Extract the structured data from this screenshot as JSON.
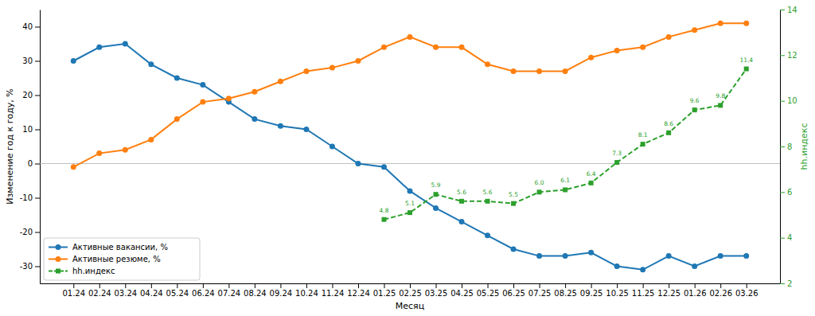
{
  "chart_data": {
    "type": "line",
    "x_label": "Месяц",
    "y_label": "Изменение год к году, %",
    "y2_label": "hh.индекс",
    "categories": [
      "01.24",
      "02.24",
      "03.24",
      "04.24",
      "05.24",
      "06.24",
      "07.24",
      "08.24",
      "09.24",
      "10.24",
      "11.24",
      "12.24",
      "01.25",
      "02.25",
      "03.25",
      "04.25",
      "05.25",
      "06.25",
      "07.25",
      "08.25",
      "09.25",
      "10.25",
      "11.25",
      "12.25",
      "01.26",
      "02.26",
      "03.26"
    ],
    "ylim": [
      -35,
      45
    ],
    "yticks": [
      -30,
      -20,
      -10,
      0,
      10,
      20,
      30,
      40
    ],
    "y2lim": [
      2,
      14
    ],
    "y2ticks": [
      2,
      4,
      6,
      8,
      10,
      12,
      14
    ],
    "reference_line": 0,
    "legend": "lower left",
    "grid": false,
    "series": [
      {
        "name": "Активные вакансии, %",
        "color": "#1f77b4",
        "marker": "circle",
        "line_style": "solid",
        "values": [
          30,
          34,
          35,
          29,
          25,
          23,
          18,
          13,
          11,
          10,
          5,
          0,
          -1,
          -8,
          -13,
          -17,
          -21,
          -25,
          -27,
          -27,
          -26,
          -30,
          -31,
          -27,
          -30,
          -27,
          -27
        ]
      },
      {
        "name": "Активные резюме, %",
        "color": "#ff7f0e",
        "marker": "circle",
        "line_style": "solid",
        "values": [
          -1,
          3,
          4,
          7,
          13,
          18,
          19,
          21,
          24,
          27,
          28,
          30,
          34,
          37,
          34,
          34,
          29,
          27,
          27,
          27,
          31,
          33,
          34,
          37,
          39,
          41,
          41
        ]
      },
      {
        "name": "hh.индекс",
        "color": "#2ca02c",
        "marker": "square",
        "line_style": "dashed",
        "axis": "y2",
        "data_labels": true,
        "values": [
          null,
          null,
          null,
          null,
          null,
          null,
          null,
          null,
          null,
          null,
          null,
          null,
          4.8,
          5.1,
          5.9,
          5.6,
          5.6,
          5.5,
          6.0,
          6.1,
          6.4,
          7.3,
          8.1,
          8.6,
          9.6,
          9.8,
          11.4
        ],
        "value_labels": [
          null,
          null,
          null,
          null,
          null,
          null,
          null,
          null,
          null,
          null,
          null,
          null,
          "4.8",
          "5.1",
          "5.9",
          "5.6",
          "5.6",
          "5.5",
          "6.0",
          "6.1",
          "6.4",
          "7.3",
          "8.1",
          "8.6",
          "9.6",
          "9.8",
          "11.4"
        ]
      }
    ]
  }
}
